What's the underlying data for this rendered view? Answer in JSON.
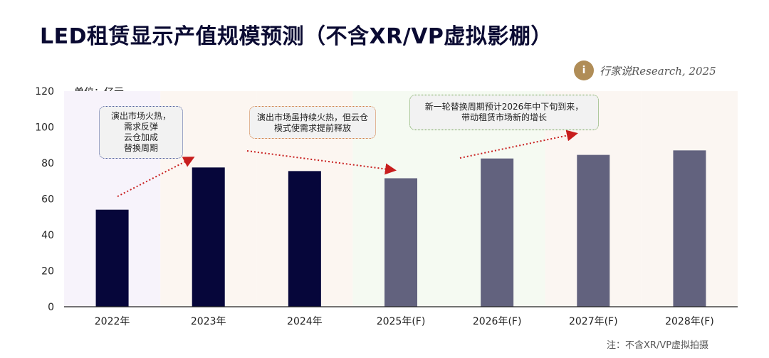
{
  "title": "LED租赁显示产值规模预测（不含XR/VP虚拟影棚）",
  "logo": {
    "mark": "i",
    "text": "行家说Research, 2025"
  },
  "unit_label": "单位：亿元",
  "footnote": "注：不含XR/VP虚拟拍摄",
  "callouts": [
    "演出市场火热，\n需求反弹\n云仓加成\n替换周期",
    "演出市场虽持续火热，但云仓\n模式使需求提前释放",
    "新一轮替换周期预计2026年中下旬到来，\n带动租赁市场新的增长"
  ],
  "colors": {
    "actual": "#06063a",
    "forecast": "#62627e",
    "arrow": "#c81e1e"
  },
  "chart_data": {
    "type": "bar",
    "categories": [
      "2022年",
      "2023年",
      "2024年",
      "2025年(F)",
      "2026年(F)",
      "2027年(F)",
      "2028年(F)"
    ],
    "values": [
      54,
      77.5,
      75.5,
      71.5,
      82.5,
      84.5,
      87
    ],
    "forecast": [
      false,
      false,
      false,
      true,
      true,
      true,
      true
    ],
    "ylim": [
      0,
      120
    ],
    "yticks": [
      0,
      20,
      40,
      60,
      80,
      100,
      120
    ],
    "ylabel": "单位：亿元",
    "legend": "none",
    "grid": false
  }
}
